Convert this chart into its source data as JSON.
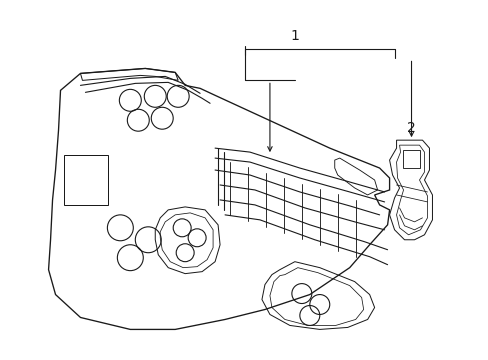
{
  "background_color": "#ffffff",
  "line_color": "#1a1a1a",
  "line_width": 0.8,
  "label1": "1",
  "label2": "2",
  "figsize": [
    4.89,
    3.6
  ],
  "dpi": 100,
  "xlim": [
    0,
    489
  ],
  "ylim": [
    0,
    360
  ]
}
